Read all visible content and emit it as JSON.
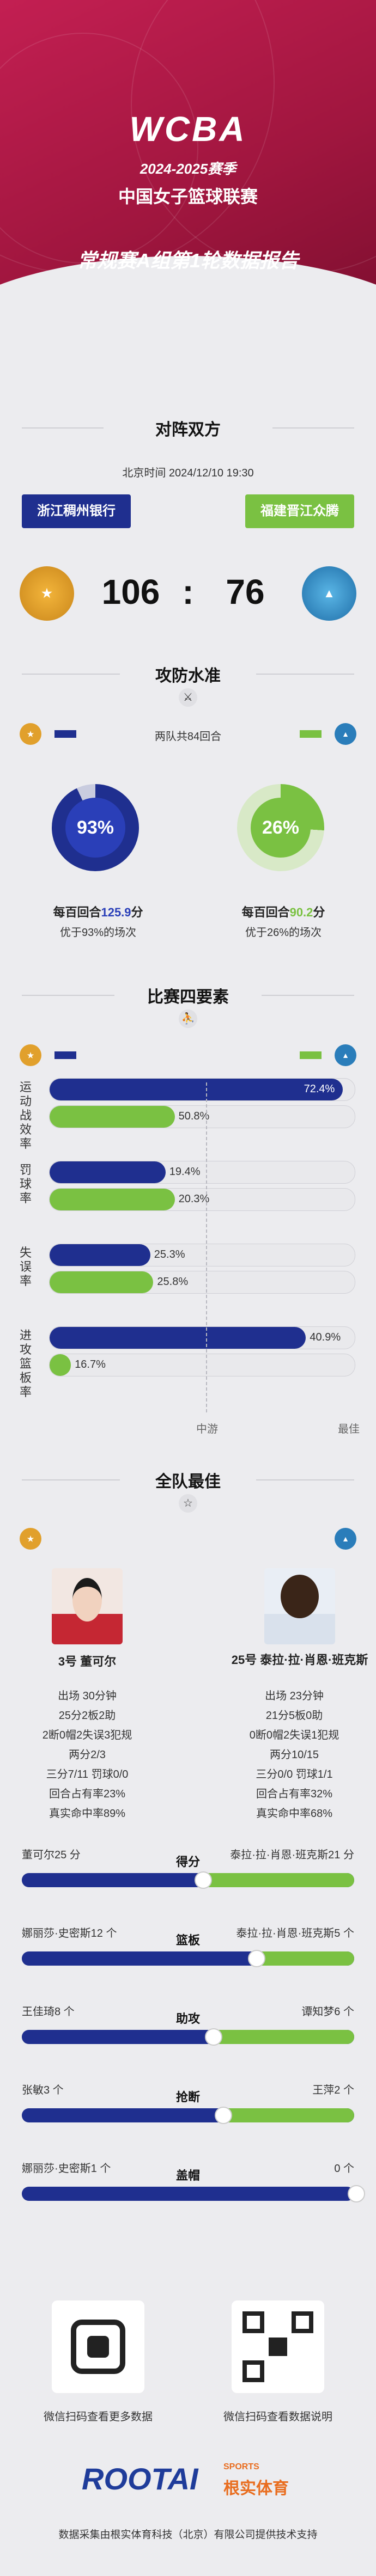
{
  "header": {
    "logo": "WCBA",
    "season": "2024-2025赛季",
    "league": "中国女子篮球联赛",
    "report": "常规赛A组第1轮数据报告"
  },
  "matchup": {
    "title": "对阵双方",
    "datetime": "北京时间 2024/12/10 19:30",
    "home_team": "浙江稠州银行",
    "away_team": "福建晋江众腾",
    "home_score": "106",
    "colon": ":",
    "away_score": "76"
  },
  "offense": {
    "title": "攻防水准",
    "possessions": "两队共84回合",
    "home_pct": "93%",
    "away_pct": "26%",
    "home_per100_prefix": "每百回合",
    "home_per100_value": "125.9",
    "home_per100_suffix": "分",
    "away_per100_prefix": "每百回合",
    "away_per100_value": "90.2",
    "away_per100_suffix": "分",
    "home_better": "优于93%的场次",
    "away_better": "优于26%的场次",
    "home_pct_value": 93,
    "away_pct_value": 26
  },
  "four_factors": {
    "title": "比赛四要素",
    "rows": [
      {
        "label": "运动战效率",
        "home": "72.4%",
        "away": "50.8%",
        "home_fill": 0.96,
        "away_fill": 0.41
      },
      {
        "label": "罚球率",
        "home": "19.4%",
        "away": "20.3%",
        "home_fill": 0.38,
        "away_fill": 0.41
      },
      {
        "label": "失误率",
        "home": "25.3%",
        "away": "25.8%",
        "home_fill": 0.33,
        "away_fill": 0.34
      },
      {
        "label": "进攻篮板率",
        "home": "40.9%",
        "away": "16.7%",
        "home_fill": 0.84,
        "away_fill": 0.07
      }
    ],
    "axis_mid": "中游",
    "axis_best": "最佳"
  },
  "best": {
    "title": "全队最佳",
    "home_player": "3号 董可尔",
    "away_player": "25号 泰拉·拉·肖恩·班克斯",
    "home_stats": [
      "出场 30分钟",
      "25分2板2助",
      "2断0帽2失误3犯规",
      "两分2/3",
      "三分7/11 罚球0/0",
      "回合占有率23%",
      "真实命中率89%"
    ],
    "away_stats": [
      "出场 23分钟",
      "21分5板0助",
      "0断0帽2失误1犯规",
      "两分10/15",
      "三分0/0 罚球1/1",
      "回合占有率32%",
      "真实命中率68%"
    ]
  },
  "comparisons": [
    {
      "left": "董可尔25 分",
      "center": "得分",
      "right": "泰拉·拉·肖恩·班克斯21 分",
      "home_share": 0.54
    },
    {
      "left": "娜丽莎·史密斯12 个",
      "center": "篮板",
      "right": "泰拉·拉·肖恩·班克斯5 个",
      "home_share": 0.7
    },
    {
      "left": "王佳琦8 个",
      "center": "助攻",
      "right": "谭知梦6 个",
      "home_share": 0.57
    },
    {
      "left": "张敏3 个",
      "center": "抢断",
      "right": "王萍2 个",
      "home_share": 0.6
    },
    {
      "left": "娜丽莎·史密斯1 个",
      "center": "盖帽",
      "right": "0 个",
      "home_share": 1.0
    }
  ],
  "footer": {
    "qr_left_caption": "微信扫码查看更多数据",
    "qr_right_caption": "微信扫码查看数据说明",
    "brand": "ROOTAI",
    "brand_sub": "SPORTS",
    "brand_cn": "根实体育",
    "credit": "数据采集由根实体育科技（北京）有限公司提供技术支持"
  },
  "colors": {
    "home": "#1f2f8f",
    "away": "#7ac142",
    "header": "#b81c4b"
  }
}
